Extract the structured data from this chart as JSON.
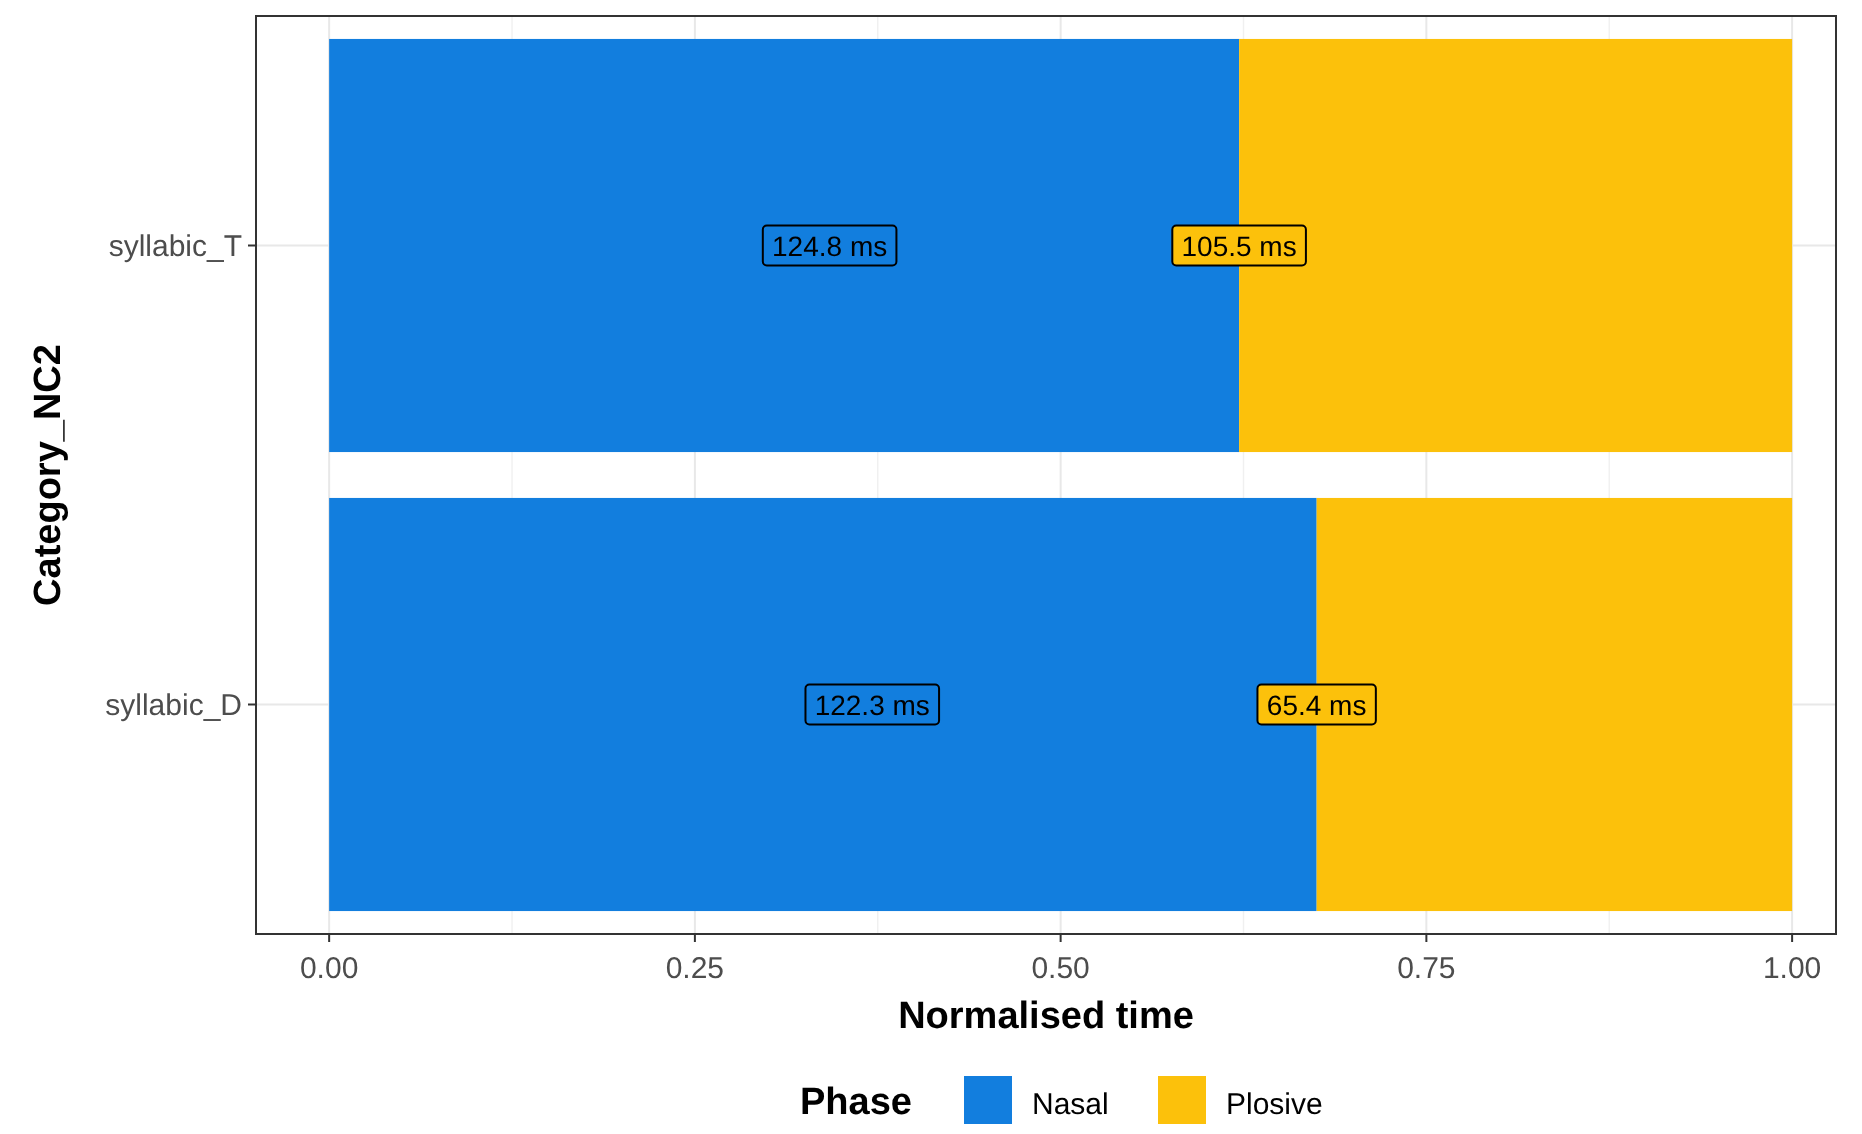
{
  "chart_data": {
    "type": "bar",
    "orientation": "horizontal",
    "stacked": true,
    "xlabel": "Normalised time",
    "ylabel": "Category_NC2",
    "legend_title": "Phase",
    "legend": "bottom",
    "grid": true,
    "categories": [
      "syllabic_T",
      "syllabic_D"
    ],
    "series": [
      {
        "name": "Nasal",
        "color": "#127ede",
        "values": [
          0.622,
          0.675
        ]
      },
      {
        "name": "Plosive",
        "color": "#fcc10b",
        "values": [
          0.378,
          0.325
        ]
      }
    ],
    "annotations": [
      "124.8 ms",
      "122.3 ms",
      {
        "text": "105.5 ms",
        "x": 0.622,
        "y": "syllabic_T"
      },
      {
        "text": "65.4 ms",
        "x": 0.675,
        "y": "syllabic_D"
      }
    ],
    "xlim": [
      -0.05,
      1.03
    ],
    "xticks": [
      {
        "value": 0,
        "label": "0.00"
      },
      {
        "value": 0.25,
        "label": "0.25"
      },
      {
        "value": 0.5,
        "label": "0.50"
      },
      {
        "value": 0.75,
        "label": "0.75"
      },
      {
        "value": 1,
        "label": "1.00"
      }
    ]
  }
}
